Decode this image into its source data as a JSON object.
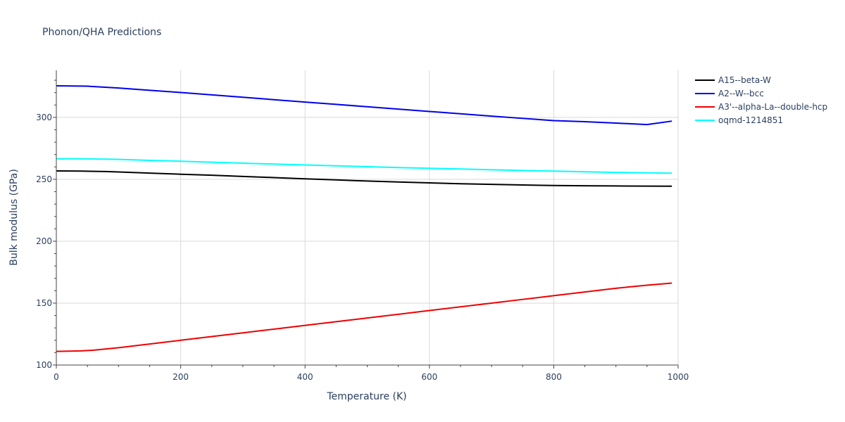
{
  "chart_data": {
    "type": "line",
    "title": "Phonon/QHA Predictions",
    "xlabel": "Temperature (K)",
    "ylabel": "Bulk modulus (GPa)",
    "xlim": [
      0,
      1000
    ],
    "ylim": [
      100,
      338
    ],
    "x_ticks": [
      0,
      200,
      400,
      600,
      800,
      1000
    ],
    "y_ticks": [
      100,
      150,
      200,
      250,
      300
    ],
    "grid": true,
    "legend_position": "top-right",
    "series": [
      {
        "name": "A15--beta-W",
        "color": "#000000",
        "x": [
          0,
          40,
          80,
          100,
          150,
          200,
          250,
          300,
          350,
          400,
          450,
          500,
          550,
          600,
          650,
          700,
          750,
          800,
          850,
          900,
          950,
          990
        ],
        "y": [
          256.8,
          256.6,
          256.3,
          255.9,
          255.0,
          254.1,
          253.3,
          252.3,
          251.4,
          250.4,
          249.5,
          248.6,
          247.8,
          247.1,
          246.4,
          245.9,
          245.4,
          245.0,
          244.8,
          244.6,
          244.5,
          244.4
        ]
      },
      {
        "name": "A2--W--bcc",
        "color": "#0000ee",
        "x": [
          0,
          50,
          100,
          150,
          200,
          250,
          300,
          350,
          400,
          450,
          500,
          550,
          600,
          650,
          700,
          750,
          800,
          850,
          900,
          950,
          990
        ],
        "y": [
          325.5,
          325.2,
          323.7,
          321.9,
          320.1,
          318.2,
          316.3,
          314.3,
          312.4,
          310.5,
          308.6,
          306.7,
          304.8,
          302.9,
          301.0,
          299.2,
          297.4,
          296.5,
          295.4,
          294.2,
          297.0
        ]
      },
      {
        "name": "A3'--alpha-La--double-hcp",
        "color": "#ee0000",
        "x": [
          0,
          40,
          60,
          100,
          150,
          200,
          250,
          300,
          350,
          400,
          450,
          500,
          550,
          600,
          650,
          700,
          750,
          800,
          850,
          900,
          950,
          990
        ],
        "y": [
          111.0,
          111.4,
          112.0,
          114.0,
          117.0,
          120.0,
          123.0,
          126.0,
          129.0,
          132.0,
          135.0,
          138.0,
          141.0,
          144.0,
          147.0,
          150.0,
          153.0,
          156.0,
          159.0,
          162.0,
          164.5,
          166.2
        ]
      },
      {
        "name": "oqmd-1214851",
        "color": "#00ffff",
        "x": [
          0,
          80,
          100,
          150,
          200,
          250,
          300,
          350,
          400,
          450,
          500,
          550,
          600,
          650,
          700,
          750,
          800,
          850,
          900,
          950,
          990
        ],
        "y": [
          266.6,
          266.3,
          266.1,
          265.3,
          264.6,
          263.8,
          263.0,
          262.3,
          261.6,
          260.9,
          260.2,
          259.5,
          258.9,
          258.3,
          257.7,
          257.1,
          256.6,
          256.1,
          255.6,
          255.2,
          254.9
        ]
      }
    ]
  }
}
